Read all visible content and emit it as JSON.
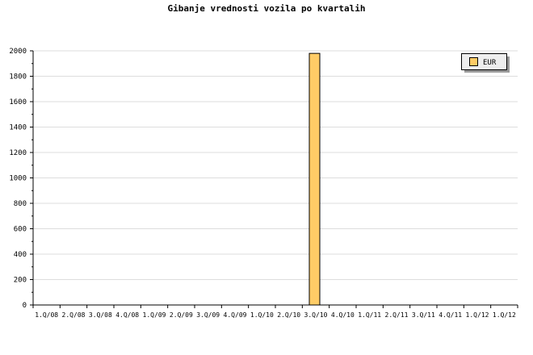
{
  "chart_data": {
    "type": "bar",
    "title": "Gibanje vrednosti vozila po kvartalih",
    "categories": [
      "1.Q/08",
      "2.Q/08",
      "3.Q/08",
      "4.Q/08",
      "1.Q/09",
      "2.Q/09",
      "3.Q/09",
      "4.Q/09",
      "1.Q/10",
      "2.Q/10",
      "3.Q/10",
      "4.Q/10",
      "1.Q/11",
      "2.Q/11",
      "3.Q/11",
      "4.Q/11",
      "1.Q/12",
      "1.Q/12"
    ],
    "series": [
      {
        "name": "EUR",
        "color": "#ffcc66",
        "values": [
          0,
          0,
          0,
          0,
          0,
          0,
          0,
          0,
          0,
          0,
          1980,
          0,
          0,
          0,
          0,
          0,
          0,
          0
        ]
      }
    ],
    "ylim": [
      0,
      2000
    ],
    "yticks": [
      0,
      200,
      400,
      600,
      800,
      1000,
      1200,
      1400,
      1600,
      1800,
      2000
    ],
    "grid": true,
    "legend": "top-right"
  }
}
